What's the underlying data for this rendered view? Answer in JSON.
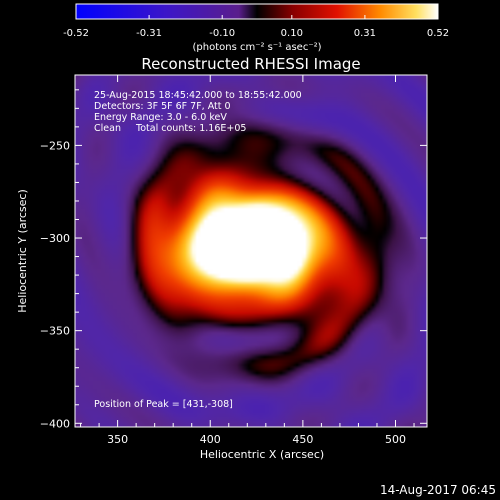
{
  "chart_data": {
    "type": "heatmap",
    "title": "Reconstructed RHESSI Image",
    "xlabel": "Heliocentric X (arcsec)",
    "ylabel": "Heliocentric Y (arcsec)",
    "xlim": [
      327,
      517
    ],
    "ylim": [
      -402,
      -212
    ],
    "x_ticks": [
      350,
      400,
      450,
      500
    ],
    "y_ticks": [
      -250,
      -300,
      -350,
      -400
    ],
    "colorbar": {
      "ticks": [
        "-0.52",
        "-0.31",
        "-0.10",
        "0.10",
        "0.31",
        "0.52"
      ],
      "tick_values": [
        -0.52,
        -0.31,
        -0.1,
        0.1,
        0.31,
        0.52
      ],
      "label": "(photons cm⁻² s⁻¹ asec⁻²)",
      "range": [
        -0.52,
        0.52
      ]
    },
    "annotations": [
      "25-Aug-2015 18:45:42.000 to 18:55:42.000",
      "Detectors: 3F 5F 6F 7F, Att 0",
      "Energy Range: 3.0 - 6.0 keV",
      "Clean     Total counts: 1.16E+05"
    ],
    "peak_label": "Position of Peak = [431,-308]",
    "peak": {
      "x": 431,
      "y": -308
    },
    "footer_date": "14-Aug-2017 06:45",
    "sources": [
      {
        "x": 425,
        "y": -305,
        "sx": 23,
        "sy": 13,
        "amp": 0.5
      },
      {
        "x": 410,
        "y": -285,
        "sx": 24,
        "sy": 18,
        "amp": 0.22
      },
      {
        "x": 438,
        "y": -322,
        "sx": 30,
        "sy": 20,
        "amp": 0.2
      },
      {
        "x": 395,
        "y": -315,
        "sx": 20,
        "sy": 16,
        "amp": 0.14
      },
      {
        "x": 440,
        "y": -290,
        "sx": 22,
        "sy": 14,
        "amp": 0.1
      }
    ]
  }
}
